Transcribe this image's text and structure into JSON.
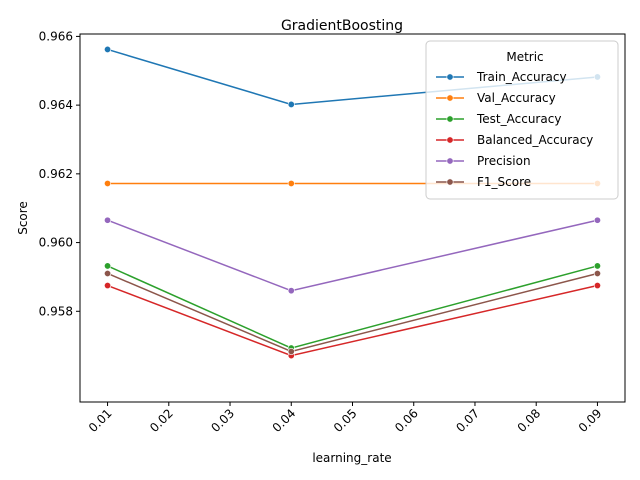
{
  "chart_data": {
    "type": "line",
    "title": "GradientBoosting",
    "xlabel": "learning_rate",
    "ylabel": "Score",
    "x": [
      0.01,
      0.04,
      0.09
    ],
    "xlim": [
      0.0055,
      0.0945
    ],
    "ylim": [
      0.95536,
      0.96607
    ],
    "xticks": [
      0.01,
      0.02,
      0.03,
      0.04,
      0.05,
      0.06,
      0.07,
      0.08,
      0.09
    ],
    "xtick_labels": [
      "0.01",
      "0.02",
      "0.03",
      "0.04",
      "0.05",
      "0.06",
      "0.07",
      "0.08",
      "0.09"
    ],
    "yticks": [
      0.958,
      0.96,
      0.962,
      0.964,
      0.966
    ],
    "ytick_labels": [
      "0.958",
      "0.960",
      "0.962",
      "0.964",
      "0.966"
    ],
    "grid": false,
    "legend": {
      "title": "Metric",
      "placement": "top-right"
    },
    "series": [
      {
        "name": "Train_Accuracy",
        "color": "#1f77b4",
        "values": [
          0.96562,
          0.96402,
          0.96482
        ]
      },
      {
        "name": "Val_Accuracy",
        "color": "#ff7f0e",
        "values": [
          0.96172,
          0.96172,
          0.96172
        ]
      },
      {
        "name": "Test_Accuracy",
        "color": "#2ca02c",
        "values": [
          0.95932,
          0.95693,
          0.95932
        ]
      },
      {
        "name": "Balanced_Accuracy",
        "color": "#d62728",
        "values": [
          0.95875,
          0.95671,
          0.95875
        ]
      },
      {
        "name": "Precision",
        "color": "#9467bd",
        "values": [
          0.96065,
          0.9586,
          0.96065
        ]
      },
      {
        "name": "F1_Score",
        "color": "#8c564b",
        "values": [
          0.9591,
          0.95683,
          0.9591
        ]
      }
    ]
  }
}
